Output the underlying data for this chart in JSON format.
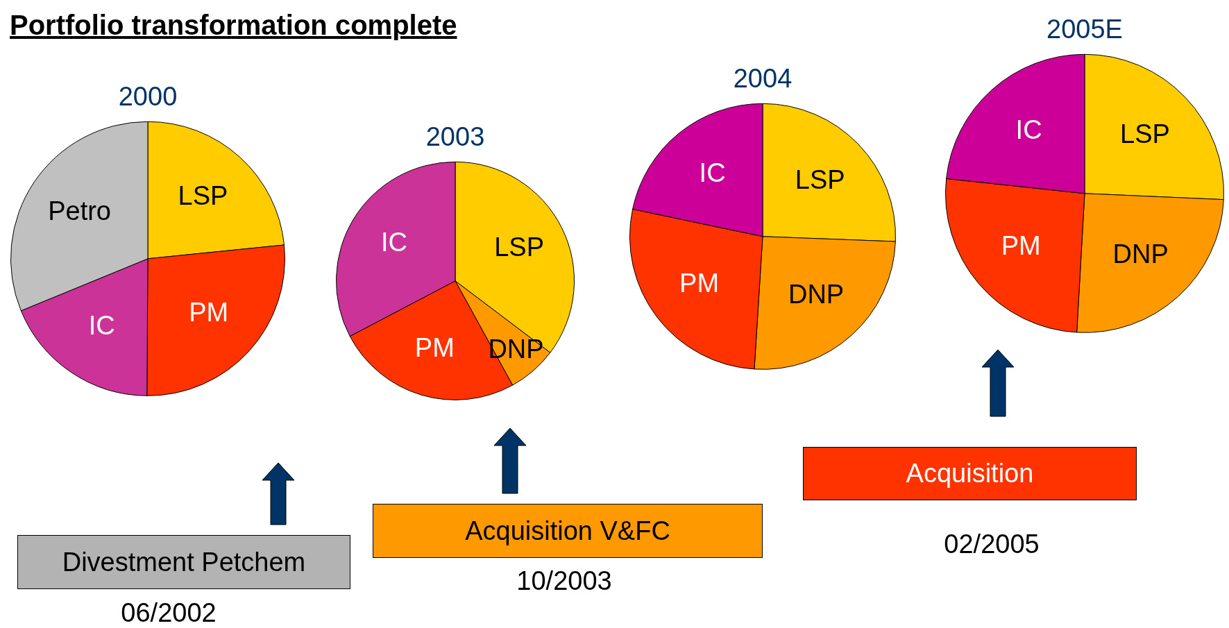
{
  "chart_data": [
    {
      "type": "other",
      "title": "Portfolio transformation complete",
      "annotations": [
        "Divestment Petchem",
        "06/2002",
        "Acquisition V&FC",
        "10/2003",
        "Acquisition",
        "02/2005"
      ]
    },
    {
      "type": "pie",
      "title": "2000",
      "categories": [
        "LSP",
        "PM",
        "IC",
        "Petro"
      ],
      "values": [
        23.4,
        26.7,
        18.7,
        31.2
      ],
      "colors": [
        "#ffcc00",
        "#ff3300",
        "#cc3399",
        "#c0c0c0"
      ],
      "data_labels": false,
      "legend": false
    },
    {
      "type": "pie",
      "title": "2003",
      "categories": [
        "LSP",
        "DNP",
        "PM",
        "IC"
      ],
      "values": [
        35.3,
        6.7,
        25.3,
        32.7
      ],
      "colors": [
        "#ffcc00",
        "#ff9900",
        "#ff3300",
        "#cc3399"
      ],
      "legend": false
    },
    {
      "type": "pie",
      "title": "2004",
      "categories": [
        "LSP",
        "DNP",
        "PM",
        "IC"
      ],
      "values": [
        25.6,
        25.4,
        27.3,
        21.7
      ],
      "colors": [
        "#ffcc00",
        "#ff9900",
        "#ff3300",
        "#cc0099"
      ],
      "legend": false
    },
    {
      "type": "pie",
      "title": "2005E",
      "categories": [
        "LSP",
        "DNP",
        "PM",
        "IC"
      ],
      "values": [
        25.7,
        25.2,
        25.8,
        23.3
      ],
      "colors": [
        "#ffcc00",
        "#ff9900",
        "#ff3300",
        "#cc0099"
      ],
      "legend": false
    }
  ]
}
